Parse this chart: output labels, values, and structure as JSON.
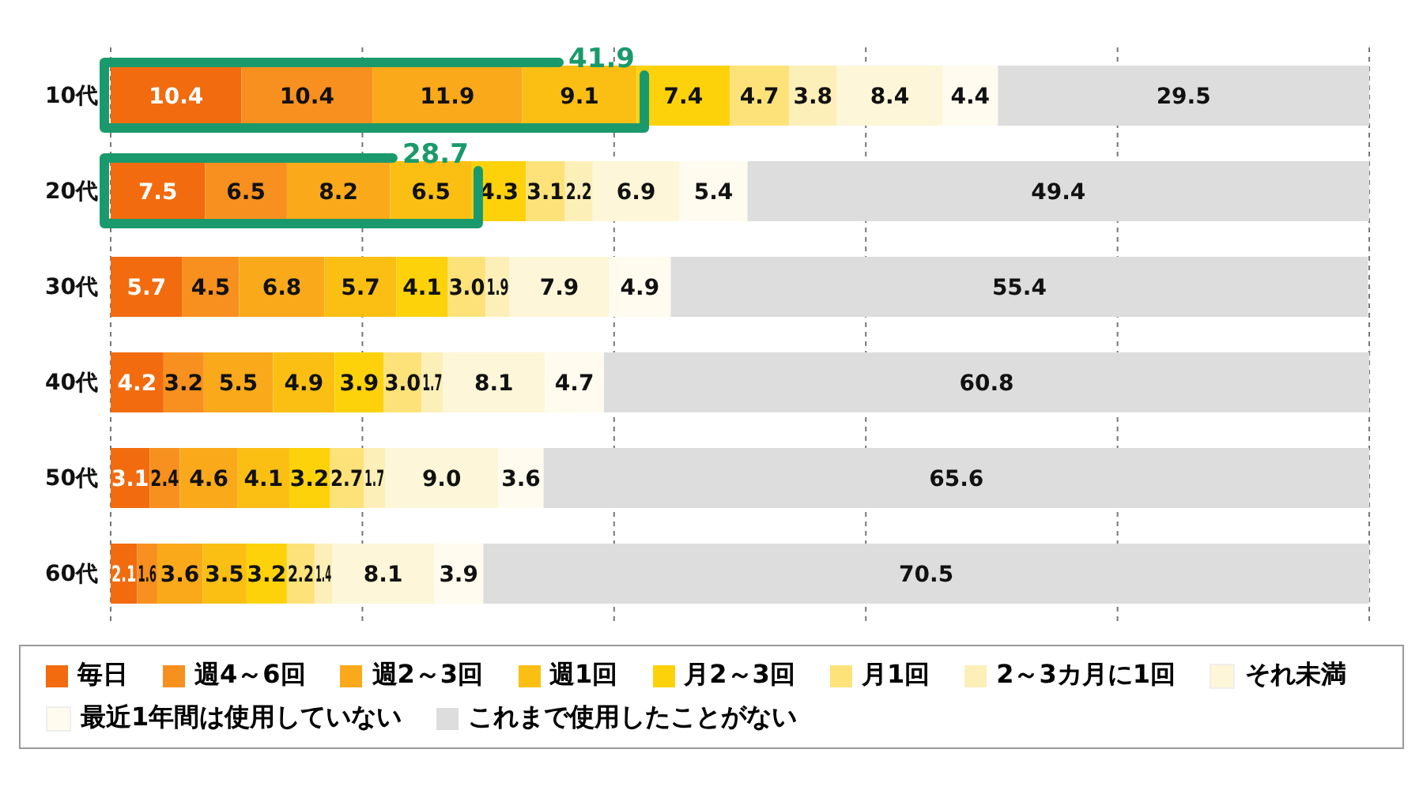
{
  "chart_data": {
    "type": "bar",
    "orientation": "horizontal",
    "stacked": true,
    "categories": [
      "10代",
      "20代",
      "30代",
      "40代",
      "50代",
      "60代"
    ],
    "series": [
      {
        "name": "毎日",
        "color": "#f26b0f",
        "values": [
          10.4,
          7.5,
          5.7,
          4.2,
          3.1,
          2.1
        ],
        "value_labels": [
          "10.4",
          "7.5",
          "5.7",
          "4.2",
          "3.1",
          "2.1"
        ]
      },
      {
        "name": "週4～6回",
        "color": "#f7901e",
        "values": [
          10.4,
          6.5,
          4.5,
          3.2,
          2.4,
          1.6
        ],
        "value_labels": [
          "10.4",
          "6.5",
          "4.5",
          "3.2",
          "2.4",
          "1.6"
        ]
      },
      {
        "name": "週2～3回",
        "color": "#f9a91a",
        "values": [
          11.9,
          8.2,
          6.8,
          5.5,
          4.6,
          3.6
        ],
        "value_labels": [
          "11.9",
          "8.2",
          "6.8",
          "5.5",
          "4.6",
          "3.6"
        ]
      },
      {
        "name": "週1回",
        "color": "#fbbf14",
        "values": [
          9.1,
          6.5,
          5.7,
          4.9,
          4.1,
          3.5
        ],
        "value_labels": [
          "9.1",
          "6.5",
          "5.7",
          "4.9",
          "4.1",
          "3.5"
        ]
      },
      {
        "name": "月2～3回",
        "color": "#fdd20a",
        "values": [
          7.4,
          4.3,
          4.1,
          3.9,
          3.2,
          3.2
        ],
        "value_labels": [
          "7.4",
          "4.3",
          "4.1",
          "3.9",
          "3.2",
          "3.2"
        ]
      },
      {
        "name": "月1回",
        "color": "#fde27a",
        "values": [
          4.7,
          3.1,
          3.0,
          3.0,
          2.7,
          2.2
        ],
        "value_labels": [
          "4.7",
          "3.1",
          "3.0",
          "3.0",
          "2.7",
          "2.2"
        ]
      },
      {
        "name": "2～3カ月に1回",
        "color": "#fdefb8",
        "values": [
          3.8,
          2.2,
          1.9,
          1.7,
          1.7,
          1.4
        ],
        "value_labels": [
          "3.8",
          "2.2",
          "1.9",
          "1.7",
          "1.7",
          "1.4"
        ]
      },
      {
        "name": "それ未満",
        "color": "#fef6d8",
        "values": [
          8.4,
          6.9,
          7.9,
          8.1,
          9.0,
          8.1
        ],
        "value_labels": [
          "8.4",
          "6.9",
          "7.9",
          "8.1",
          "9.0",
          "8.1"
        ]
      },
      {
        "name": "最近1年間は使用していない",
        "color": "#fffbee",
        "values": [
          4.4,
          5.4,
          4.9,
          4.7,
          3.6,
          3.9
        ],
        "value_labels": [
          "4.4",
          "5.4",
          "4.9",
          "4.7",
          "3.6",
          "3.9"
        ]
      },
      {
        "name": "これまで使用したことがない",
        "color": "#dddddd",
        "values": [
          29.5,
          49.4,
          55.4,
          60.8,
          65.6,
          70.5
        ],
        "value_labels": [
          "29.5",
          "49.4",
          "55.4",
          "60.8",
          "65.6",
          "70.5"
        ]
      }
    ],
    "xlim": [
      0,
      100
    ],
    "xticks": [
      {
        "value": 0,
        "label": null
      },
      {
        "value": 20,
        "label": null
      },
      {
        "value": 40,
        "label": null
      },
      {
        "value": 60,
        "label": null
      },
      {
        "value": 80,
        "label": null
      },
      {
        "value": 100,
        "label": null
      }
    ],
    "tick_labels": "y",
    "grid": "x",
    "legend": "bottom",
    "annotations": [
      {
        "text": "41.9",
        "x": 41.9,
        "y": "10代"
      },
      {
        "text": "28.7",
        "x": 28.7,
        "y": "20代"
      }
    ]
  }
}
